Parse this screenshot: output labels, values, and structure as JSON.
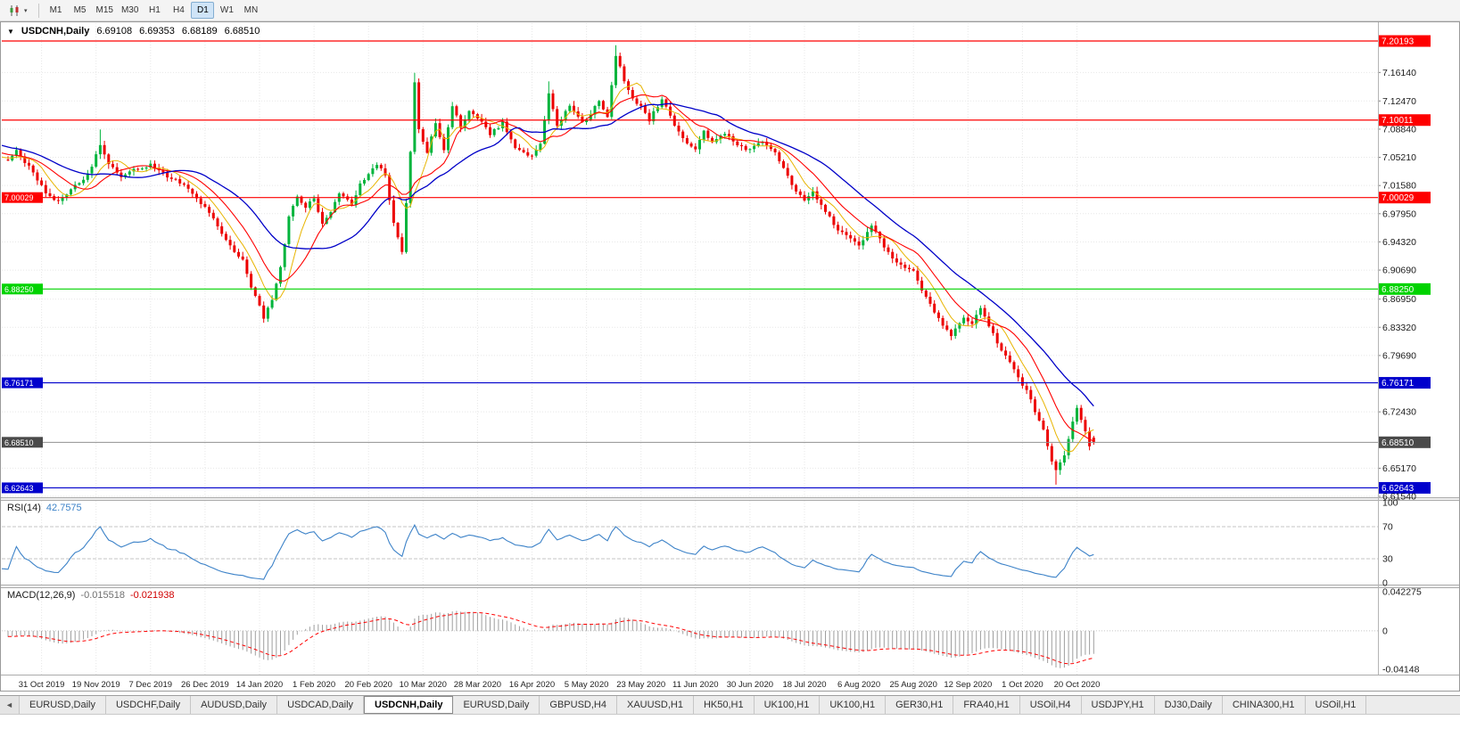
{
  "toolbar": {
    "chart_icon": "candlestick-chart",
    "dropdown_caret": "▾",
    "timeframes": [
      "M1",
      "M5",
      "M15",
      "M30",
      "H1",
      "H4",
      "D1",
      "W1",
      "MN"
    ],
    "active_timeframe": "D1"
  },
  "chart": {
    "menu_arrow": "▼",
    "symbol_label": "USDCNH,Daily",
    "ohlc": {
      "open": "6.69108",
      "high": "6.69353",
      "low": "6.68189",
      "close": "6.68510"
    },
    "price_axis": {
      "range_top": 7.2249,
      "range_bottom": 6.6143,
      "ticks": [
        "7.16140",
        "7.12470",
        "7.08840",
        "7.05210",
        "7.01580",
        "6.97950",
        "6.94320",
        "6.90690",
        "6.86950",
        "6.83320",
        "6.79690",
        "6.72430",
        "6.65170",
        "6.61540"
      ]
    },
    "hlines": [
      {
        "price": 7.20193,
        "label": "7.20193",
        "color": "#FE0000",
        "left_tag": false
      },
      {
        "price": 7.10011,
        "label": "7.10011",
        "color": "#FE0000",
        "left_tag": false
      },
      {
        "price": 7.00029,
        "label": "7.00029",
        "color": "#FE0000",
        "left_tag": true
      },
      {
        "price": 6.8825,
        "label": "6.88250",
        "color": "#00D300",
        "left_tag": true
      },
      {
        "price": 6.76171,
        "label": "6.76171",
        "color": "#0000CC",
        "left_tag": true
      },
      {
        "price": 6.62643,
        "label": "6.62643",
        "color": "#0000CC",
        "left_tag": true
      }
    ],
    "bid_line": {
      "price": 6.6851,
      "label": "6.68510",
      "line_color": "#909090",
      "tag_color": "#4A4A4A"
    },
    "date_axis": [
      "31 Oct 2019",
      "19 Nov 2019",
      "7 Dec 2019",
      "26 Dec 2019",
      "14 Jan 2020",
      "1 Feb 2020",
      "20 Feb 2020",
      "10 Mar 2020",
      "28 Mar 2020",
      "16 Apr 2020",
      "5 May 2020",
      "23 May 2020",
      "11 Jun 2020",
      "30 Jun 2020",
      "18 Jul 2020",
      "6 Aug 2020",
      "25 Aug 2020",
      "12 Sep 2020",
      "1 Oct 2020",
      "20 Oct 2020"
    ],
    "colors": {
      "candle_up": "#00B43C",
      "candle_down": "#EC0000",
      "ma_fast": "#E8B400",
      "ma_mid": "#FF0000",
      "ma_slow": "#0000C8",
      "grid": "#E7E7E7",
      "rsi_line": "#3C82C8",
      "macd_hist": "#9E9E9E",
      "macd_signal": "#FF0000"
    }
  },
  "chart_data": {
    "type": "candlestick",
    "symbol": "USDCNH",
    "timeframe": "Daily",
    "candle_count": 260,
    "bars_per_date_label": 13,
    "first_label_bar_index": 8,
    "prepend": {
      "bars": 30,
      "from": 7.092
    },
    "close_anchors": [
      [
        0,
        7.046
      ],
      [
        2,
        7.06
      ],
      [
        5,
        7.04
      ],
      [
        9,
        7.008
      ],
      [
        12,
        6.994
      ],
      [
        15,
        7.01
      ],
      [
        18,
        7.025
      ],
      [
        20,
        7.04
      ],
      [
        22,
        7.068
      ],
      [
        24,
        7.045
      ],
      [
        27,
        7.025
      ],
      [
        30,
        7.036
      ],
      [
        34,
        7.042
      ],
      [
        38,
        7.028
      ],
      [
        42,
        7.016
      ],
      [
        45,
        6.998
      ],
      [
        47,
        6.99
      ],
      [
        50,
        6.962
      ],
      [
        53,
        6.938
      ],
      [
        56,
        6.92
      ],
      [
        58,
        6.886
      ],
      [
        60,
        6.862
      ],
      [
        61,
        6.846
      ],
      [
        63,
        6.87
      ],
      [
        65,
        6.91
      ],
      [
        67,
        6.975
      ],
      [
        69,
        7.002
      ],
      [
        71,
        6.988
      ],
      [
        73,
        7.0
      ],
      [
        75,
        6.968
      ],
      [
        77,
        6.982
      ],
      [
        79,
        7.005
      ],
      [
        82,
        6.992
      ],
      [
        84,
        7.018
      ],
      [
        86,
        7.032
      ],
      [
        88,
        7.042
      ],
      [
        90,
        7.031
      ],
      [
        92,
        6.966
      ],
      [
        94,
        6.928
      ],
      [
        96,
        7.058
      ],
      [
        97,
        7.148
      ],
      [
        98,
        7.088
      ],
      [
        100,
        7.058
      ],
      [
        102,
        7.096
      ],
      [
        104,
        7.062
      ],
      [
        106,
        7.118
      ],
      [
        108,
        7.092
      ],
      [
        110,
        7.112
      ],
      [
        112,
        7.104
      ],
      [
        115,
        7.082
      ],
      [
        118,
        7.096
      ],
      [
        121,
        7.066
      ],
      [
        125,
        7.052
      ],
      [
        127,
        7.07
      ],
      [
        129,
        7.134
      ],
      [
        131,
        7.092
      ],
      [
        134,
        7.12
      ],
      [
        137,
        7.098
      ],
      [
        139,
        7.108
      ],
      [
        141,
        7.124
      ],
      [
        143,
        7.105
      ],
      [
        145,
        7.182
      ],
      [
        147,
        7.152
      ],
      [
        149,
        7.128
      ],
      [
        151,
        7.118
      ],
      [
        153,
        7.1
      ],
      [
        156,
        7.128
      ],
      [
        159,
        7.092
      ],
      [
        162,
        7.072
      ],
      [
        164,
        7.062
      ],
      [
        166,
        7.086
      ],
      [
        168,
        7.072
      ],
      [
        171,
        7.082
      ],
      [
        174,
        7.068
      ],
      [
        177,
        7.062
      ],
      [
        180,
        7.074
      ],
      [
        183,
        7.058
      ],
      [
        186,
        7.028
      ],
      [
        188,
        7.006
      ],
      [
        190,
        6.998
      ],
      [
        192,
        7.008
      ],
      [
        195,
        6.982
      ],
      [
        198,
        6.958
      ],
      [
        201,
        6.946
      ],
      [
        203,
        6.94
      ],
      [
        206,
        6.962
      ],
      [
        209,
        6.938
      ],
      [
        212,
        6.916
      ],
      [
        216,
        6.904
      ],
      [
        219,
        6.872
      ],
      [
        222,
        6.844
      ],
      [
        225,
        6.822
      ],
      [
        228,
        6.846
      ],
      [
        230,
        6.836
      ],
      [
        232,
        6.858
      ],
      [
        235,
        6.824
      ],
      [
        238,
        6.796
      ],
      [
        241,
        6.768
      ],
      [
        243,
        6.752
      ],
      [
        245,
        6.726
      ],
      [
        247,
        6.7
      ],
      [
        249,
        6.66
      ],
      [
        250,
        6.648
      ],
      [
        252,
        6.668
      ],
      [
        254,
        6.714
      ],
      [
        255,
        6.728
      ],
      [
        256,
        6.712
      ],
      [
        257,
        6.698
      ],
      [
        258,
        6.681
      ],
      [
        259,
        6.6851
      ]
    ],
    "extremes": [
      {
        "i": 22,
        "h": 7.088
      },
      {
        "i": 61,
        "l": 6.839
      },
      {
        "i": 97,
        "h": 7.161
      },
      {
        "i": 129,
        "h": 7.15
      },
      {
        "i": 145,
        "h": 7.1965
      },
      {
        "i": 250,
        "l": 6.6305
      }
    ],
    "last_bar": {
      "o": 6.69108,
      "h": 6.69353,
      "l": 6.68189,
      "c": 6.6851
    },
    "ma_periods": {
      "fast": 7,
      "mid": 13,
      "slow": 26
    },
    "indicators": {
      "rsi": {
        "name": "RSI(14)",
        "value": "42.7575",
        "period": 14,
        "levels": [
          70,
          30
        ],
        "axis_labels": [
          "100",
          "70",
          "30",
          "0"
        ],
        "range": [
          0,
          100
        ]
      },
      "macd": {
        "name": "MACD(12,26,9)",
        "value_main": "-0.015518",
        "value_signal": "-0.021938",
        "fast": 12,
        "slow": 26,
        "signal": 9,
        "axis_labels": [
          "0.042275",
          "0",
          "-0.04148"
        ],
        "range": [
          -0.04148,
          0.042275
        ]
      }
    }
  },
  "tabs": {
    "scroll_left": "◄",
    "active_index": 4,
    "items": [
      "EURUSD,Daily",
      "USDCHF,Daily",
      "AUDUSD,Daily",
      "USDCAD,Daily",
      "USDCNH,Daily",
      "EURUSD,Daily",
      "GBPUSD,H4",
      "XAUUSD,H1",
      "HK50,H1",
      "UK100,H1",
      "UK100,H1",
      "GER30,H1",
      "FRA40,H1",
      "USOil,H4",
      "USDJPY,H1",
      "DJ30,Daily",
      "CHINA300,H1",
      "USOil,H1"
    ]
  }
}
